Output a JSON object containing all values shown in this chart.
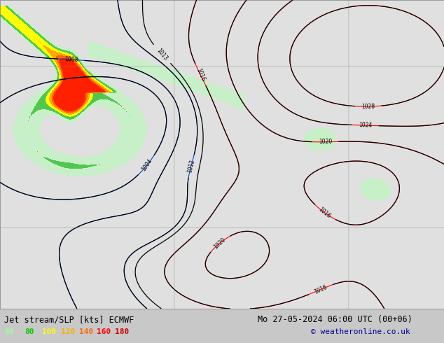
{
  "title_left": "Jet stream/SLP [kts] ECMWF",
  "title_right": "Mo 27-05-2024 06:00 UTC (00+06)",
  "copyright": "© weatheronline.co.uk",
  "legend_values": [
    60,
    80,
    100,
    120,
    140,
    160,
    180
  ],
  "legend_colors": [
    "#99ff99",
    "#00cc00",
    "#ffff00",
    "#ffaa00",
    "#ff6600",
    "#ff0000",
    "#cc0000"
  ],
  "bg_color": "#c8c8c8",
  "map_bg": "#e0e0e0",
  "figsize": [
    6.34,
    4.9
  ],
  "dpi": 100,
  "jet_levels": [
    0,
    60,
    80,
    100,
    120,
    140,
    160,
    180,
    999
  ],
  "jet_colors": [
    "#e0e0e0",
    "#c8f0c8",
    "#50c850",
    "#ffff00",
    "#ffaa00",
    "#ff6600",
    "#ff2000",
    "#cc0000"
  ],
  "pressure_levels_black": [
    1004,
    1008,
    1012,
    1013,
    1016,
    1020,
    1024,
    1028
  ],
  "pressure_levels_red": [
    1016,
    1020,
    1024,
    1028
  ],
  "pressure_levels_blue": [
    1004,
    1008,
    1012
  ]
}
